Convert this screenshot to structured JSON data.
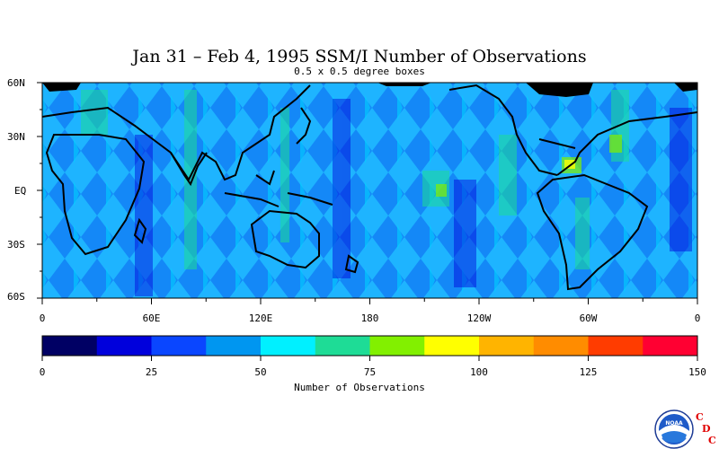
{
  "title": "Jan 31 – Feb 4, 1995 SSM/I Number of Observations",
  "subtitle": "0.5 x 0.5 degree boxes",
  "lat_labels": [
    "60N",
    "30N",
    "EQ",
    "30S",
    "60S"
  ],
  "lon_labels": [
    "0",
    "60E",
    "120E",
    "180",
    "120W",
    "60W",
    "0"
  ],
  "colorbar": {
    "title": "Number of Observations",
    "labels": [
      "0",
      "25",
      "50",
      "75",
      "100",
      "125",
      "150"
    ],
    "colors": [
      "#000064",
      "#0000dc",
      "#0a46ff",
      "#0096f0",
      "#00f0ff",
      "#1edc96",
      "#82f000",
      "#ffff00",
      "#ffb400",
      "#ff8c00",
      "#ff3c00",
      "#ff0032"
    ]
  },
  "map_colors": {
    "background": "#1eb4ff",
    "dense_swath": "#0a46ff",
    "coast": "#000000"
  },
  "logos": {
    "noaa": "NOAA",
    "cdc": [
      "C",
      "D",
      "C"
    ]
  }
}
